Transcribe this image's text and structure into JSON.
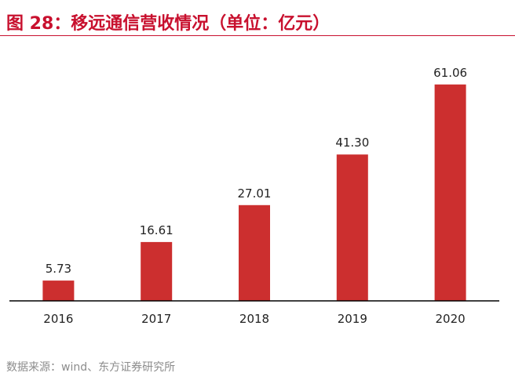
{
  "header": {
    "title": "图 28：移远通信营收情况（单位：亿元）"
  },
  "footer": {
    "source": "数据来源：wind、东方证券研究所"
  },
  "colors": {
    "accent": "#c8102e",
    "bar": "#cc2f2f",
    "axis": "#000000",
    "source_text": "#8c8c8c"
  },
  "chart_data": {
    "type": "bar",
    "title": "图 28：移远通信营收情况（单位：亿元）",
    "categories": [
      "2016",
      "2017",
      "2018",
      "2019",
      "2020"
    ],
    "values": [
      5.73,
      16.61,
      27.01,
      41.3,
      61.06
    ],
    "value_labels": [
      "5.73",
      "16.61",
      "27.01",
      "41.30",
      "61.06"
    ],
    "xlabel": "",
    "ylabel": "",
    "ylim": [
      0,
      65
    ],
    "grid": false,
    "legend": "none"
  }
}
